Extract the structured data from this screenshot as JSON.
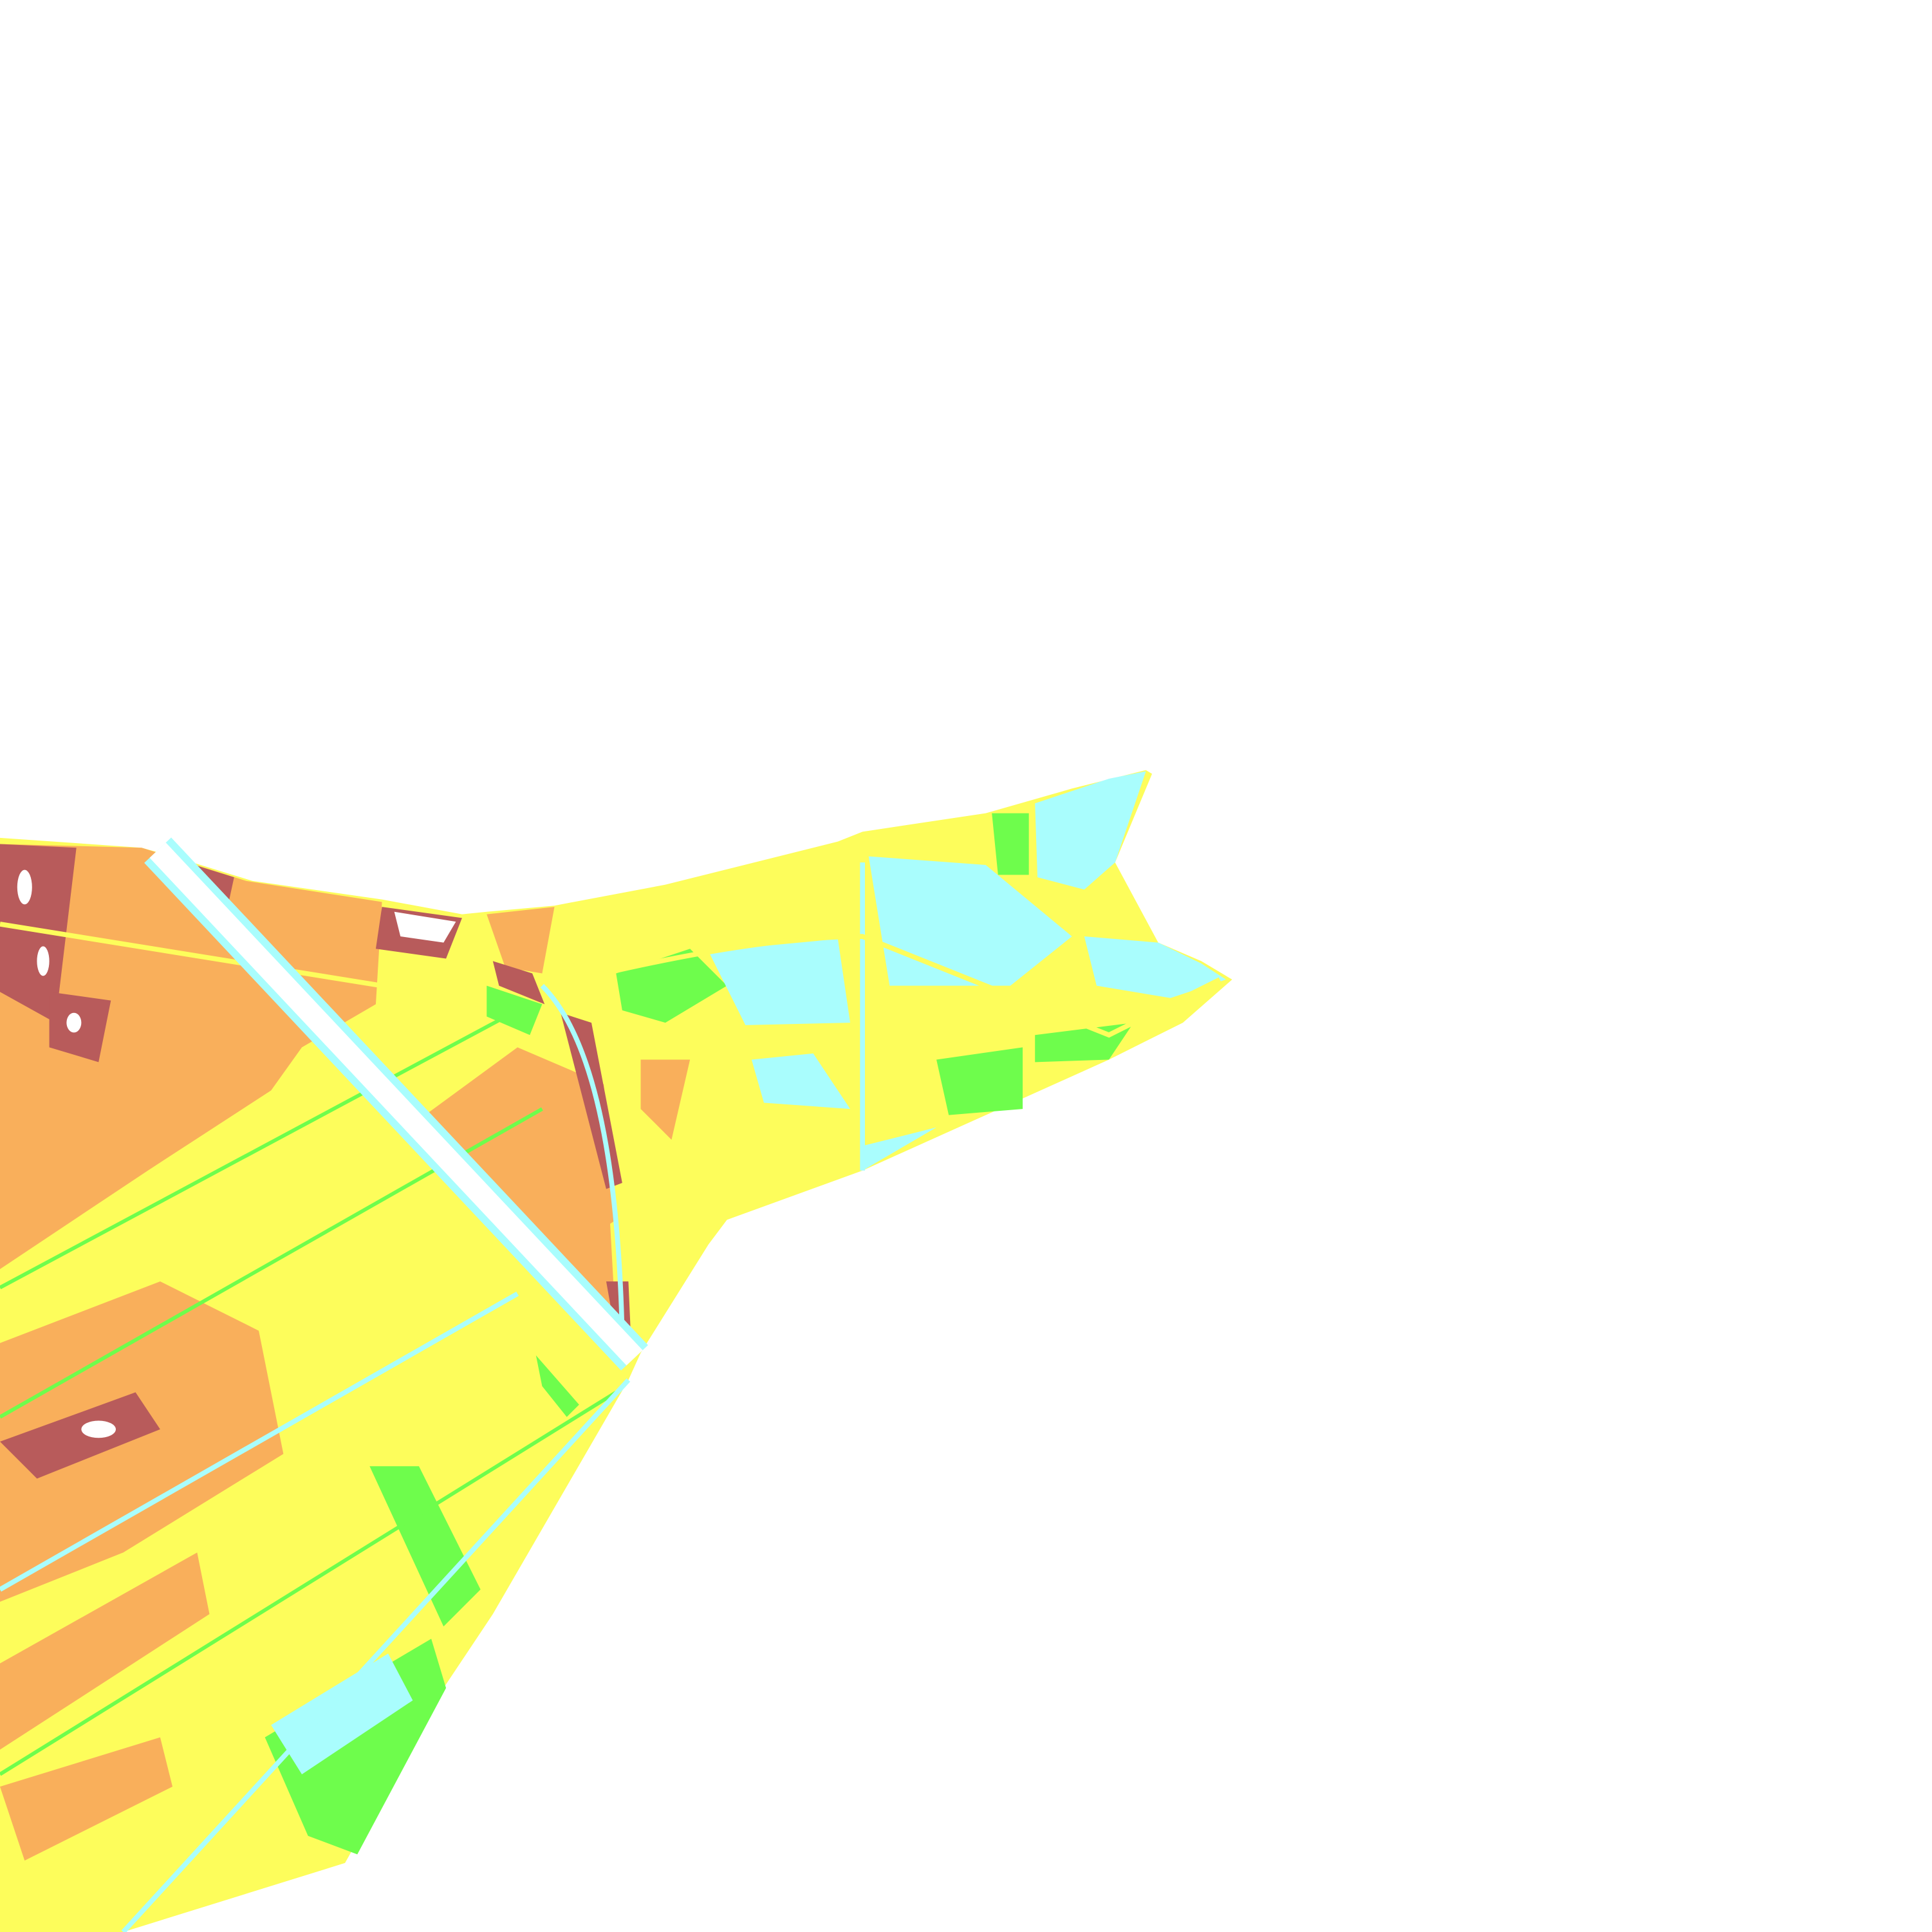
{
  "map": {
    "type": "classified land-cover raster",
    "background": "#FFFFFF",
    "class_colors": {
      "class_1": "#B85B5B",
      "class_2": "#F9AF5B",
      "class_3": "#FDFD5B",
      "class_4": "#6EFD4C",
      "class_5": "#A9FDFD",
      "nodata": "#FFFFFF"
    }
  }
}
